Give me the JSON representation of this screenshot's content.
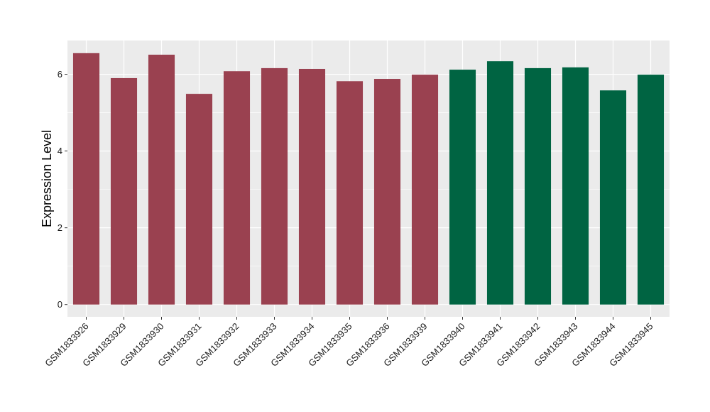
{
  "chart_data": {
    "type": "bar",
    "title": "",
    "xlabel": "",
    "ylabel": "Expression Level",
    "ylim": [
      -0.32,
      6.88
    ],
    "yticks": [
      0,
      2,
      4,
      6
    ],
    "grid": true,
    "legend": "none",
    "categories": [
      "GSM1833926",
      "GSM1833929",
      "GSM1833930",
      "GSM1833931",
      "GSM1833932",
      "GSM1833933",
      "GSM1833934",
      "GSM1833935",
      "GSM1833936",
      "GSM1833939",
      "GSM1833940",
      "GSM1833941",
      "GSM1833942",
      "GSM1833943",
      "GSM1833944",
      "GSM1833945"
    ],
    "values": [
      6.55,
      5.9,
      6.51,
      5.49,
      6.08,
      6.16,
      6.14,
      5.82,
      5.88,
      5.99,
      6.12,
      6.34,
      6.16,
      6.18,
      5.58,
      5.99
    ],
    "groups": [
      0,
      0,
      0,
      0,
      0,
      0,
      0,
      0,
      0,
      0,
      1,
      1,
      1,
      1,
      1,
      1
    ],
    "group_colors": [
      "#9a4150",
      "#006442"
    ],
    "panel_color": "#ebebeb",
    "grid_color": "#ffffff"
  }
}
